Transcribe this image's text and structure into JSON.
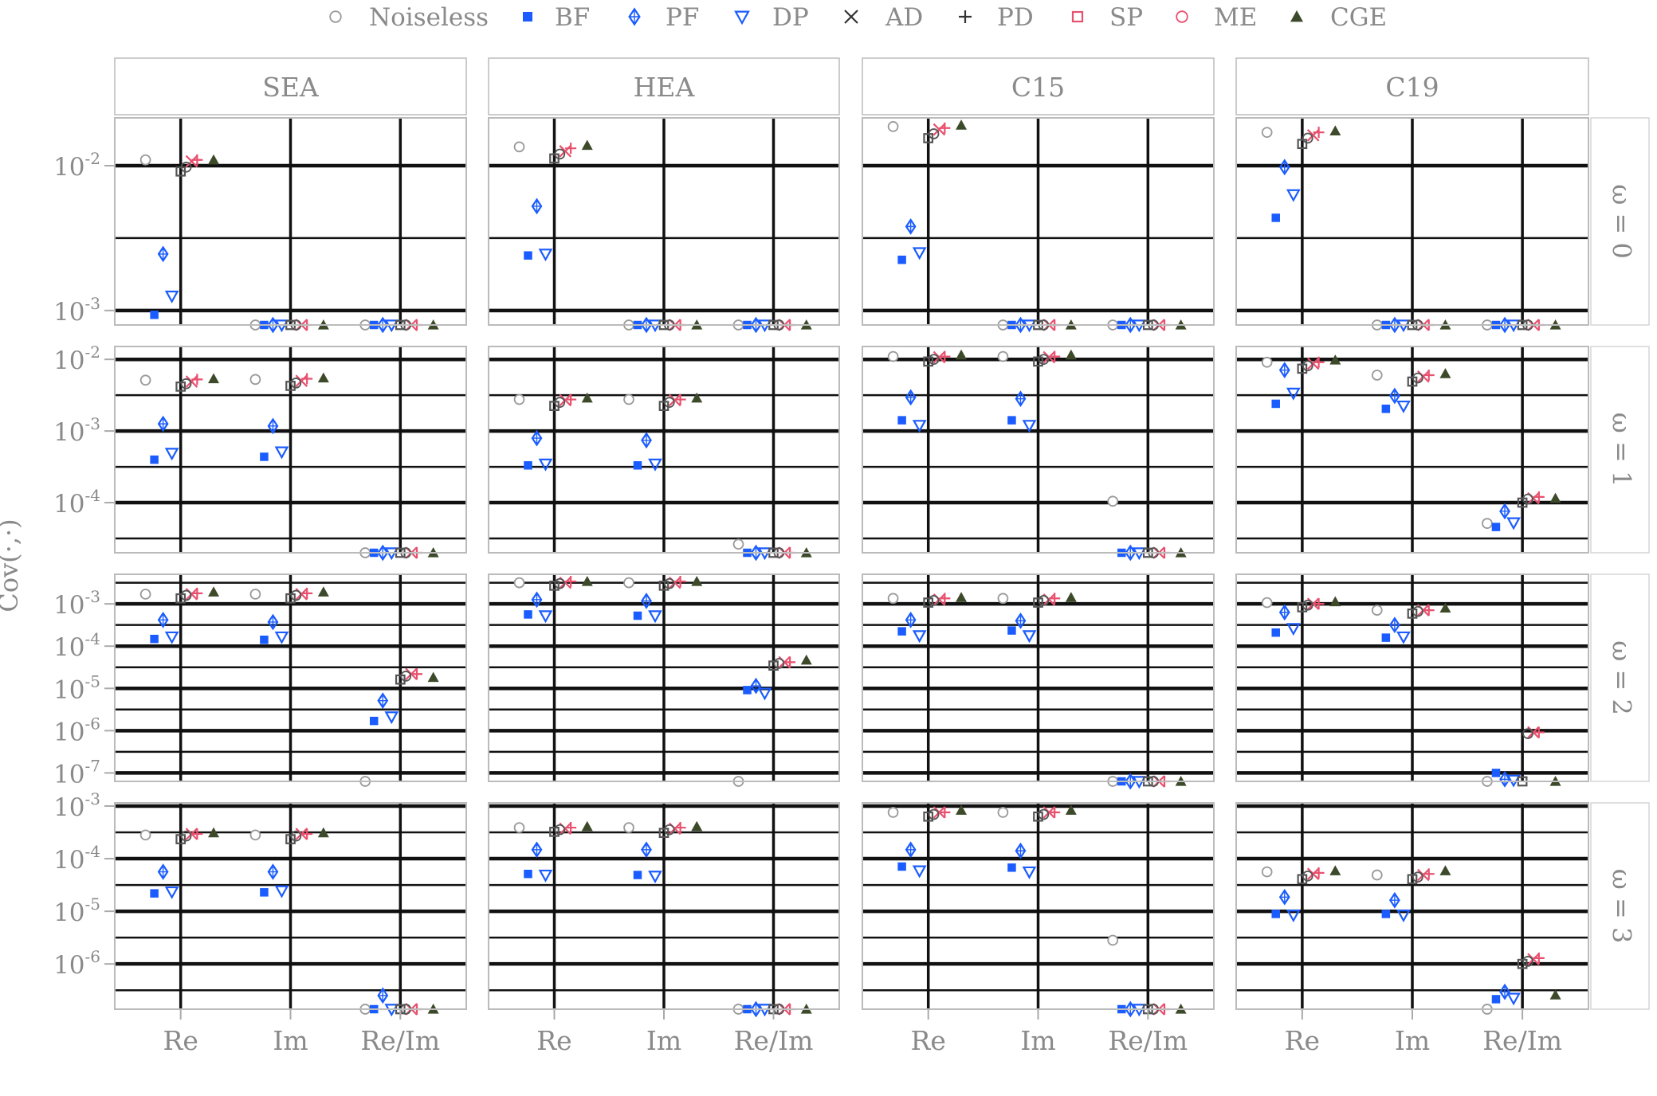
{
  "chart_data": {
    "type": "scatter",
    "ylabel": "Cov(·,·)",
    "y_scale": "log10",
    "legend": {
      "position": "top",
      "entries": [
        {
          "name": "Noiseless",
          "shape": "circle-open",
          "color": "#9a9a9a"
        },
        {
          "name": "BF",
          "shape": "square-filled",
          "color": "#1a5cff"
        },
        {
          "name": "PF",
          "shape": "diamond-plus",
          "color": "#1a5cff"
        },
        {
          "name": "DP",
          "shape": "triangle-down-open",
          "color": "#1a5cff"
        },
        {
          "name": "AD",
          "shape": "cross",
          "color": "#333333"
        },
        {
          "name": "PD",
          "shape": "plus",
          "color": "#333333"
        },
        {
          "name": "SP",
          "shape": "square-open",
          "color": "#e8506e"
        },
        {
          "name": "ME",
          "shape": "circle-open",
          "color": "#e8506e"
        },
        {
          "name": "CGE",
          "shape": "triangle-up-filled",
          "color": "#3d4a2a"
        }
      ]
    },
    "columns": [
      "SEA",
      "HEA",
      "C15",
      "C19"
    ],
    "rows": [
      "ω = 0",
      "ω = 1",
      "ω = 2",
      "ω = 3"
    ],
    "categories": [
      "Re",
      "Im",
      "Re/Im"
    ],
    "methods": [
      "Noiseless",
      "BF",
      "PF",
      "DP",
      "AD",
      "PD",
      "SP",
      "ME",
      "CGE"
    ],
    "row_axes": [
      {
        "ylim_log10": [
          -3.1,
          -1.67
        ],
        "ticks": [
          -3,
          -2
        ]
      },
      {
        "ylim_log10": [
          -4.7,
          -1.82
        ],
        "ticks": [
          -4,
          -3,
          -2
        ]
      },
      {
        "ylim_log10": [
          -7.2,
          -2.3
        ],
        "ticks": [
          -7,
          -6,
          -5,
          -4,
          -3
        ]
      },
      {
        "ylim_log10": [
          -6.86,
          -2.94
        ],
        "ticks": [
          -6,
          -5,
          -4,
          -3
        ]
      }
    ],
    "panels": [
      [
        {
          "Re": [
            -1.96,
            -3.03,
            -2.61,
            -2.9,
            -1.97,
            -1.96,
            -2.04,
            -2.01,
            -1.96
          ],
          "Im": [
            -3.1,
            -3.1,
            -3.1,
            -3.1,
            -3.1,
            -3.1,
            -3.1,
            -3.1,
            -3.1
          ],
          "Re/Im": [
            -3.1,
            -3.1,
            -3.1,
            -3.1,
            -3.1,
            -3.1,
            -3.1,
            -3.1,
            -3.1
          ]
        },
        {
          "Re": [
            -1.87,
            -2.62,
            -2.28,
            -2.61,
            -1.9,
            -1.88,
            -1.95,
            -1.92,
            -1.86
          ],
          "Im": [
            -3.1,
            -3.1,
            -3.1,
            -3.1,
            -3.1,
            -3.1,
            -3.1,
            -3.1,
            -3.1
          ],
          "Re/Im": [
            -3.1,
            -3.1,
            -3.1,
            -3.1,
            -3.1,
            -3.1,
            -3.1,
            -3.1,
            -3.1
          ]
        },
        {
          "Re": [
            -1.73,
            -2.65,
            -2.42,
            -2.6,
            -1.75,
            -1.74,
            -1.81,
            -1.78,
            -1.72
          ],
          "Im": [
            -3.1,
            -3.1,
            -3.1,
            -3.1,
            -3.1,
            -3.1,
            -3.1,
            -3.1,
            -3.1
          ],
          "Re/Im": [
            -3.1,
            -3.1,
            -3.1,
            -3.1,
            -3.1,
            -3.1,
            -3.1,
            -3.1,
            -3.1
          ]
        },
        {
          "Re": [
            -1.77,
            -2.36,
            -2.01,
            -2.2,
            -1.79,
            -1.77,
            -1.85,
            -1.81,
            -1.76
          ],
          "Im": [
            -3.1,
            -3.1,
            -3.1,
            -3.1,
            -3.1,
            -3.1,
            -3.1,
            -3.1,
            -3.1
          ],
          "Re/Im": [
            -3.1,
            -3.1,
            -3.1,
            -3.1,
            -3.1,
            -3.1,
            -3.1,
            -3.1,
            -3.1
          ]
        }
      ],
      [
        {
          "Re": [
            -2.29,
            -3.4,
            -2.9,
            -3.31,
            -2.31,
            -2.28,
            -2.38,
            -2.34,
            -2.27
          ],
          "Im": [
            -2.28,
            -3.36,
            -2.93,
            -3.29,
            -2.3,
            -2.27,
            -2.37,
            -2.33,
            -2.26
          ],
          "Re/Im": [
            -4.7,
            -4.7,
            -4.7,
            -4.7,
            -4.7,
            -4.7,
            -4.7,
            -4.7,
            -4.7
          ]
        },
        {
          "Re": [
            -2.56,
            -3.48,
            -3.1,
            -3.46,
            -2.57,
            -2.56,
            -2.65,
            -2.6,
            -2.54
          ],
          "Im": [
            -2.56,
            -3.48,
            -3.13,
            -3.46,
            -2.57,
            -2.56,
            -2.65,
            -2.6,
            -2.54
          ],
          "Re/Im": [
            -4.58,
            -4.7,
            -4.7,
            -4.7,
            -4.7,
            -4.7,
            -4.7,
            -4.7,
            -4.7
          ]
        },
        {
          "Re": [
            -1.96,
            -2.85,
            -2.53,
            -2.92,
            -1.97,
            -1.96,
            -2.03,
            -2.0,
            -1.94
          ],
          "Im": [
            -1.96,
            -2.85,
            -2.55,
            -2.92,
            -1.97,
            -1.96,
            -2.03,
            -2.0,
            -1.94
          ],
          "Re/Im": [
            -3.98,
            -4.7,
            -4.7,
            -4.7,
            -4.7,
            -4.7,
            -4.7,
            -4.7,
            -4.7
          ]
        },
        {
          "Re": [
            -2.04,
            -2.62,
            -2.15,
            -2.47,
            -2.06,
            -2.04,
            -2.13,
            -2.09,
            -2.01
          ],
          "Im": [
            -2.22,
            -2.69,
            -2.51,
            -2.65,
            -2.24,
            -2.22,
            -2.31,
            -2.26,
            -2.2
          ],
          "Re/Im": [
            -4.29,
            -4.34,
            -4.12,
            -4.28,
            -3.94,
            -3.92,
            -4.0,
            -3.95,
            -3.94
          ]
        }
      ],
      [
        {
          "Re": [
            -2.77,
            -3.83,
            -3.38,
            -3.78,
            -2.77,
            -2.75,
            -2.87,
            -2.8,
            -2.72
          ],
          "Im": [
            -2.77,
            -3.85,
            -3.43,
            -3.78,
            -2.77,
            -2.75,
            -2.87,
            -2.8,
            -2.72
          ],
          "Re/Im": [
            -7.2,
            -5.77,
            -5.29,
            -5.67,
            -4.66,
            -4.66,
            -4.79,
            -4.71,
            -4.74
          ]
        },
        {
          "Re": [
            -2.5,
            -3.25,
            -2.9,
            -3.28,
            -2.5,
            -2.47,
            -2.57,
            -2.52,
            -2.47
          ],
          "Im": [
            -2.5,
            -3.28,
            -2.93,
            -3.28,
            -2.5,
            -2.47,
            -2.57,
            -2.52,
            -2.47
          ],
          "Re/Im": [
            -7.2,
            -5.04,
            -4.94,
            -5.11,
            -4.38,
            -4.38,
            -4.46,
            -4.41,
            -4.33
          ]
        },
        {
          "Re": [
            -2.87,
            -3.65,
            -3.38,
            -3.75,
            -2.9,
            -2.87,
            -2.97,
            -2.92,
            -2.85
          ],
          "Im": [
            -2.87,
            -3.63,
            -3.4,
            -3.75,
            -2.9,
            -2.87,
            -2.97,
            -2.92,
            -2.85
          ],
          "Re/Im": [
            -7.2,
            -7.2,
            -7.2,
            -7.2,
            -7.2,
            -7.2,
            -7.2,
            -7.2,
            -7.2
          ]
        },
        {
          "Re": [
            -2.97,
            -3.68,
            -3.2,
            -3.58,
            -3.0,
            -3.0,
            -3.08,
            -3.03,
            -2.95
          ],
          "Im": [
            -3.15,
            -3.8,
            -3.5,
            -3.78,
            -3.15,
            -3.15,
            -3.23,
            -3.18,
            -3.1
          ],
          "Re/Im": [
            -7.2,
            -7.0,
            -7.15,
            -7.17,
            -6.04,
            -6.04,
            -7.2,
            -6.07,
            -7.2
          ]
        }
      ],
      [
        {
          "Re": [
            -3.55,
            -4.66,
            -4.25,
            -4.63,
            -3.53,
            -3.53,
            -3.63,
            -3.57,
            -3.51
          ],
          "Im": [
            -3.55,
            -4.64,
            -4.25,
            -4.61,
            -3.53,
            -3.53,
            -3.63,
            -3.57,
            -3.51
          ],
          "Re/Im": [
            -6.86,
            -6.86,
            -6.6,
            -6.86,
            -6.86,
            -6.86,
            -6.86,
            -6.86,
            -6.86
          ]
        },
        {
          "Re": [
            -3.41,
            -4.29,
            -3.83,
            -4.31,
            -3.43,
            -3.41,
            -3.49,
            -3.45,
            -3.39
          ],
          "Im": [
            -3.41,
            -4.31,
            -3.83,
            -4.33,
            -3.43,
            -3.41,
            -3.51,
            -3.45,
            -3.39
          ],
          "Re/Im": [
            -6.86,
            -6.86,
            -6.86,
            -6.86,
            -6.86,
            -6.86,
            -6.86,
            -6.86,
            -6.86
          ]
        },
        {
          "Re": [
            -3.12,
            -4.15,
            -3.83,
            -4.23,
            -3.12,
            -3.12,
            -3.2,
            -3.16,
            -3.08
          ],
          "Im": [
            -3.12,
            -4.17,
            -3.85,
            -4.25,
            -3.12,
            -3.12,
            -3.2,
            -3.16,
            -3.08
          ],
          "Re/Im": [
            -5.55,
            -6.86,
            -6.86,
            -6.86,
            -6.86,
            -6.86,
            -6.86,
            -6.86,
            -6.86
          ]
        },
        {
          "Re": [
            -4.25,
            -5.05,
            -4.73,
            -5.07,
            -4.29,
            -4.27,
            -4.39,
            -4.33,
            -4.23
          ],
          "Im": [
            -4.31,
            -5.05,
            -4.79,
            -5.07,
            -4.31,
            -4.29,
            -4.39,
            -4.35,
            -4.23
          ],
          "Re/Im": [
            -6.86,
            -6.67,
            -6.53,
            -6.65,
            -5.91,
            -5.89,
            -6.0,
            -5.95,
            -6.59
          ]
        }
      ]
    ]
  }
}
